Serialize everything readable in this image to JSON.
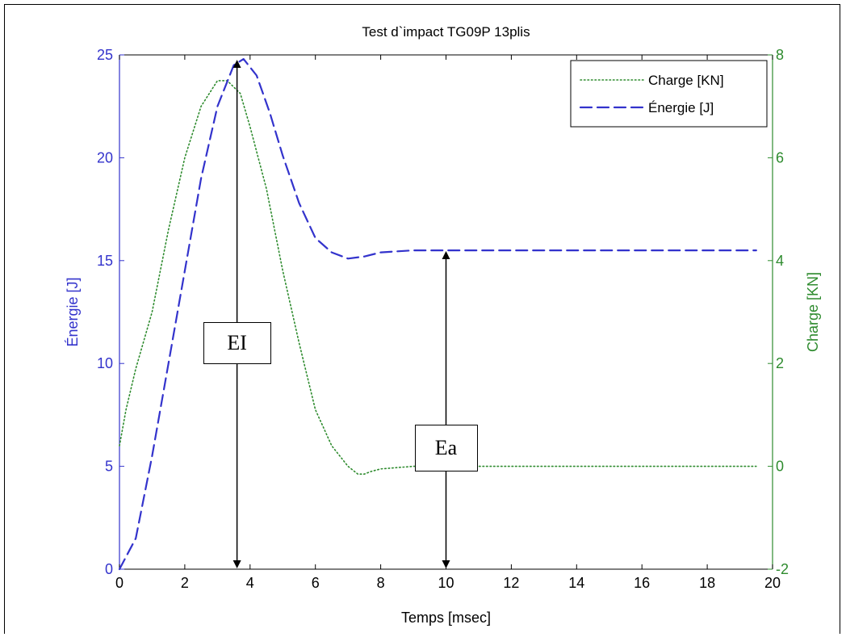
{
  "chart_data": {
    "type": "line",
    "title": "Test d`impact TG09P 13plis",
    "xlabel": "Temps [msec]",
    "ylabel_left": "Énergie [J]",
    "ylabel_right": "Charge [KN]",
    "xlim": [
      0,
      20
    ],
    "ylim_left": [
      0,
      25
    ],
    "ylim_right": [
      -2,
      8
    ],
    "x_ticks": [
      0,
      2,
      4,
      6,
      8,
      10,
      12,
      14,
      16,
      18,
      20
    ],
    "y_left_ticks": [
      0,
      5,
      10,
      15,
      20,
      25
    ],
    "y_right_ticks": [
      -2,
      0,
      2,
      4,
      6,
      8
    ],
    "grid": false,
    "legend_position": "top-right",
    "colors": {
      "energy": "#3333cc",
      "charge": "#2e8b2e",
      "left_axis": "#3333cc",
      "right_axis": "#2e8b2e"
    },
    "series": [
      {
        "name": "Charge [KN]",
        "axis": "right",
        "style": "dotted",
        "x": [
          0,
          0.2,
          0.5,
          1.0,
          1.5,
          2.0,
          2.5,
          3.0,
          3.3,
          3.7,
          4.0,
          4.5,
          5.0,
          5.5,
          6.0,
          6.5,
          7.0,
          7.3,
          7.5,
          7.7,
          8.0,
          9.0,
          10.0,
          12.0,
          14.0,
          16.0,
          18.0,
          19.5
        ],
        "values": [
          0.4,
          1.1,
          1.9,
          3.0,
          4.6,
          6.0,
          7.0,
          7.5,
          7.5,
          7.25,
          6.6,
          5.4,
          3.8,
          2.4,
          1.1,
          0.4,
          0.0,
          -0.15,
          -0.15,
          -0.1,
          -0.05,
          0.0,
          0.0,
          0.0,
          0.0,
          0.0,
          0.0,
          0.0
        ]
      },
      {
        "name": "Énergie [J]",
        "axis": "left",
        "style": "dashed",
        "x": [
          0,
          0.5,
          1.0,
          1.5,
          2.0,
          2.5,
          3.0,
          3.5,
          3.8,
          4.2,
          4.6,
          5.0,
          5.5,
          6.0,
          6.5,
          7.0,
          7.5,
          8.0,
          9.0,
          10.0,
          12.0,
          14.0,
          16.0,
          18.0,
          19.5
        ],
        "values": [
          0,
          1.5,
          5.5,
          10.0,
          14.5,
          19.0,
          22.5,
          24.5,
          24.8,
          24.0,
          22.2,
          20.1,
          17.8,
          16.1,
          15.4,
          15.1,
          15.2,
          15.4,
          15.5,
          15.5,
          15.5,
          15.5,
          15.5,
          15.5,
          15.5
        ]
      }
    ],
    "annotations": [
      {
        "label": "EI",
        "x": 3.6,
        "y_from": 0,
        "y_to": 24.8
      },
      {
        "label": "Ea",
        "x": 10.0,
        "y_from": 0,
        "y_to": 15.5
      }
    ]
  }
}
